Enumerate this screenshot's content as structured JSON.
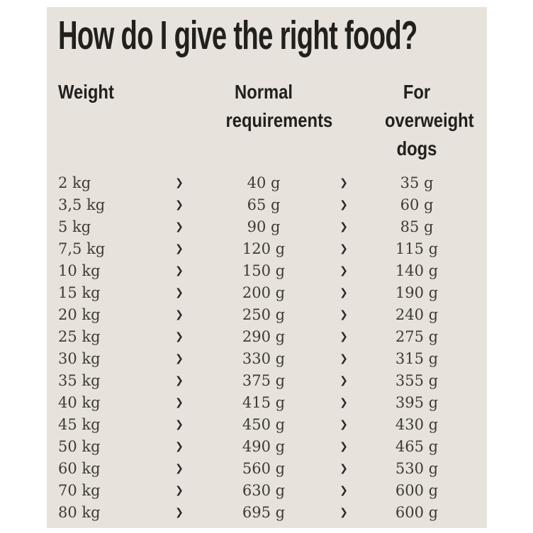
{
  "title": "How do I give the right food?",
  "columns": {
    "weight": "Weight",
    "normal": "Normal requirements",
    "overweight": "For overweight dogs"
  },
  "arrow_glyph": "❯",
  "colors": {
    "sheet_background": "#e7e3dc",
    "page_background": "#ffffff",
    "heading_text": "#21201d",
    "body_text": "#3e3a34"
  },
  "chart_data": {
    "type": "table",
    "title": "How do I give the right food?",
    "columns": [
      "Weight",
      "Normal requirements",
      "For overweight dogs"
    ],
    "rows": [
      {
        "weight": "2 kg",
        "normal": "40 g",
        "overweight": "35 g"
      },
      {
        "weight": "3,5 kg",
        "normal": "65 g",
        "overweight": "60 g"
      },
      {
        "weight": "5 kg",
        "normal": "90 g",
        "overweight": "85 g"
      },
      {
        "weight": "7,5 kg",
        "normal": "120 g",
        "overweight": "115 g"
      },
      {
        "weight": "10 kg",
        "normal": "150 g",
        "overweight": "140 g"
      },
      {
        "weight": "15 kg",
        "normal": "200 g",
        "overweight": "190 g"
      },
      {
        "weight": "20 kg",
        "normal": "250 g",
        "overweight": "240 g"
      },
      {
        "weight": "25 kg",
        "normal": "290 g",
        "overweight": "275 g"
      },
      {
        "weight": "30 kg",
        "normal": "330 g",
        "overweight": "315 g"
      },
      {
        "weight": "35 kg",
        "normal": "375 g",
        "overweight": "355 g"
      },
      {
        "weight": "40 kg",
        "normal": "415 g",
        "overweight": "395 g"
      },
      {
        "weight": "45 kg",
        "normal": "450 g",
        "overweight": "430 g"
      },
      {
        "weight": "50 kg",
        "normal": "490 g",
        "overweight": "465 g"
      },
      {
        "weight": "60 kg",
        "normal": "560 g",
        "overweight": "530 g"
      },
      {
        "weight": "70 kg",
        "normal": "630 g",
        "overweight": "600 g"
      },
      {
        "weight": "80 kg",
        "normal": "695 g",
        "overweight": "600 g"
      }
    ]
  }
}
